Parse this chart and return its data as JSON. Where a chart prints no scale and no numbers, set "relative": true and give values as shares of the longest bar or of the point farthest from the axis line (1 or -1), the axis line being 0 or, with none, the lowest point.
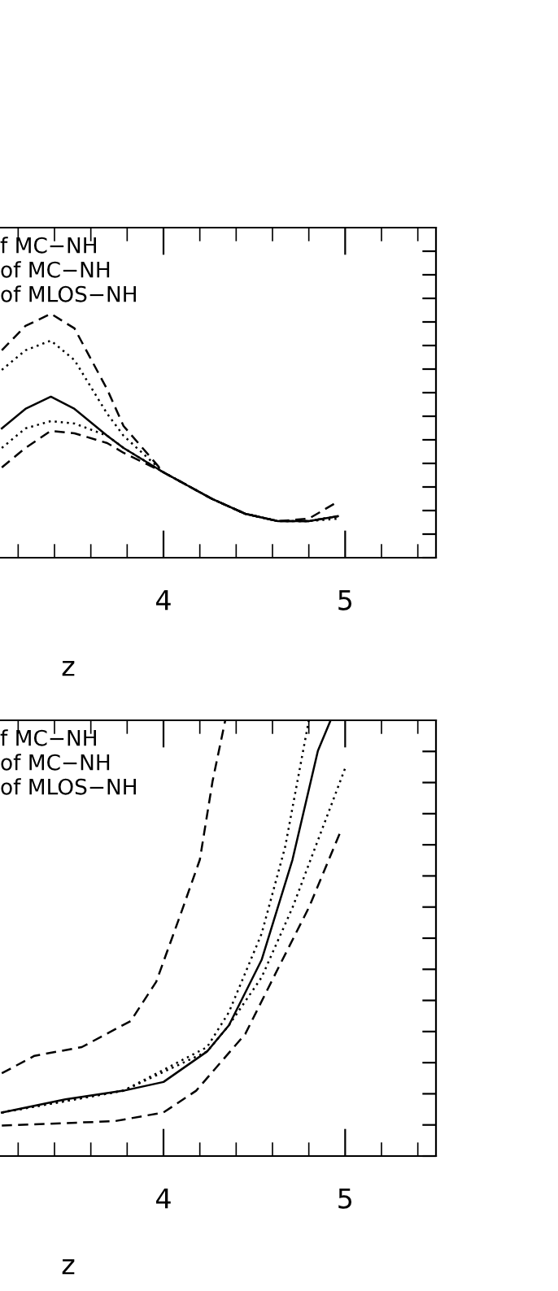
{
  "chart_data": [
    {
      "type": "line",
      "relative": true,
      "xlabel": "z",
      "xlim": [
        3.1,
        5.5
      ],
      "xticks": [
        {
          "value": 3.2,
          "label": null
        },
        {
          "value": 3.4,
          "label": null
        },
        {
          "value": 3.6,
          "label": null
        },
        {
          "value": 3.8,
          "label": null
        },
        4,
        {
          "value": 4.2,
          "label": null
        },
        {
          "value": 4.4,
          "label": null
        },
        {
          "value": 4.6,
          "label": null
        },
        {
          "value": 4.8,
          "label": null
        },
        5,
        {
          "value": 5.2,
          "label": null
        },
        {
          "value": 5.4,
          "label": null
        }
      ],
      "tick_labels": "x",
      "annotations": [
        "f MC−NH",
        "of MC−NH",
        "of MLOS−NH"
      ],
      "x": [
        3.11,
        3.24,
        3.38,
        3.51,
        3.69,
        3.78,
        4.0,
        4.27,
        4.45,
        4.63,
        4.8,
        4.96
      ],
      "series": [
        {
          "color": "#000000",
          "line_style": "solid",
          "values": [
            0.53,
            0.61,
            0.66,
            0.61,
            0.5,
            0.45,
            0.35,
            0.24,
            0.18,
            0.15,
            0.15,
            0.17
          ]
        },
        {
          "color": "#000000",
          "line_style": "dashed",
          "values": [
            0.85,
            0.95,
            1.0,
            0.94,
            0.69,
            0.54,
            0.35,
            0.24,
            0.18,
            0.15,
            0.15,
            0.17
          ]
        },
        {
          "color": "#000000",
          "line_style": "dotted",
          "values": [
            0.77,
            0.85,
            0.89,
            0.81,
            0.59,
            0.5,
            0.35,
            0.24,
            0.18,
            0.15,
            0.15,
            0.16
          ]
        },
        {
          "color": "#000000",
          "line_style": "dotted",
          "values": [
            0.45,
            0.53,
            0.56,
            0.55,
            0.5,
            0.45,
            0.35,
            0.24,
            0.18,
            0.15,
            0.15,
            0.17
          ]
        },
        {
          "color": "#000000",
          "line_style": "dashed",
          "values": [
            0.37,
            0.45,
            0.52,
            0.51,
            0.47,
            0.43,
            0.35,
            0.24,
            0.18,
            0.15,
            0.16,
            0.23
          ]
        }
      ]
    },
    {
      "type": "line",
      "relative": true,
      "xlabel": "z",
      "xlim": [
        3.1,
        5.5
      ],
      "xticks": [
        {
          "value": 3.2,
          "label": null
        },
        {
          "value": 3.4,
          "label": null
        },
        {
          "value": 3.6,
          "label": null
        },
        {
          "value": 3.8,
          "label": null
        },
        4,
        {
          "value": 4.2,
          "label": null
        },
        {
          "value": 4.4,
          "label": null
        },
        {
          "value": 4.6,
          "label": null
        },
        {
          "value": 4.8,
          "label": null
        },
        5,
        {
          "value": 5.2,
          "label": null
        },
        {
          "value": 5.4,
          "label": null
        }
      ],
      "tick_labels": "x",
      "annotations": [
        "f MC−NH",
        "of MC−NH",
        "of MLOS−NH"
      ],
      "series": [
        {
          "color": "#000000",
          "line_style": "solid",
          "x": [
            3.11,
            3.46,
            3.78,
            4.0,
            4.24,
            4.36,
            4.54,
            4.71,
            4.85,
            4.92
          ],
          "values": [
            0.1,
            0.13,
            0.15,
            0.17,
            0.24,
            0.3,
            0.45,
            0.68,
            0.93,
            1.0
          ]
        },
        {
          "color": "#000000",
          "line_style": "dashed",
          "x": [
            3.11,
            3.29,
            3.55,
            3.82,
            3.96,
            4.09,
            4.2,
            4.27,
            4.34
          ],
          "values": [
            0.19,
            0.23,
            0.25,
            0.31,
            0.4,
            0.55,
            0.68,
            0.86,
            1.0
          ]
        },
        {
          "color": "#000000",
          "line_style": "dashed",
          "x": [
            3.11,
            3.73,
            4.0,
            4.18,
            4.45,
            4.63,
            4.8,
            4.98
          ],
          "values": [
            0.07,
            0.08,
            0.1,
            0.15,
            0.28,
            0.43,
            0.57,
            0.75
          ]
        },
        {
          "color": "#000000",
          "line_style": "dotted",
          "x": [
            3.11,
            3.78,
            4.24,
            4.36,
            4.54,
            4.67,
            4.8
          ],
          "values": [
            0.1,
            0.15,
            0.25,
            0.33,
            0.51,
            0.71,
            1.0
          ]
        },
        {
          "color": "#000000",
          "line_style": "dotted",
          "x": [
            3.11,
            3.78,
            4.24,
            4.36,
            4.54,
            4.71,
            5.0
          ],
          "values": [
            0.1,
            0.15,
            0.24,
            0.3,
            0.41,
            0.57,
            0.89
          ]
        }
      ]
    }
  ]
}
